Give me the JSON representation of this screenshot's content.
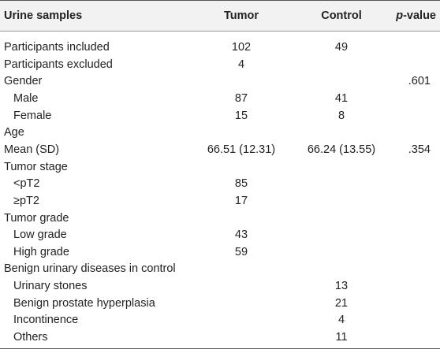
{
  "table": {
    "headers": [
      "Urine samples",
      "Tumor",
      "Control",
      "p-value"
    ],
    "rows": [
      {
        "label": "Participants included",
        "tumor": "102",
        "control": "49"
      },
      {
        "label": "Participants excluded",
        "tumor": "4"
      },
      {
        "label": "Gender",
        "p": ".601",
        "items": [
          {
            "label": "Male",
            "tumor": "87",
            "control": "41"
          },
          {
            "label": "Female",
            "tumor": "15",
            "control": "8"
          }
        ]
      },
      {
        "label": "Age"
      },
      {
        "label": "Mean (SD)",
        "tumor": "66.51 (12.31)",
        "control": "66.24 (13.55)",
        "p": ".354"
      },
      {
        "label": "Tumor stage",
        "items": [
          {
            "label": "<pT2",
            "tumor": "85"
          },
          {
            "label": "≥pT2",
            "tumor": "17"
          }
        ]
      },
      {
        "label": "Tumor grade",
        "items": [
          {
            "label": "Low grade",
            "tumor": "43"
          },
          {
            "label": "High grade",
            "tumor": "59"
          }
        ]
      },
      {
        "label": "Benign urinary diseases in control",
        "items": [
          {
            "label": "Urinary stones",
            "control": "13"
          },
          {
            "label": "Benign prostate hyperplasia",
            "control": "21"
          },
          {
            "label": "Incontinence",
            "control": "4"
          },
          {
            "label": "Others",
            "control": "11"
          }
        ]
      }
    ]
  }
}
